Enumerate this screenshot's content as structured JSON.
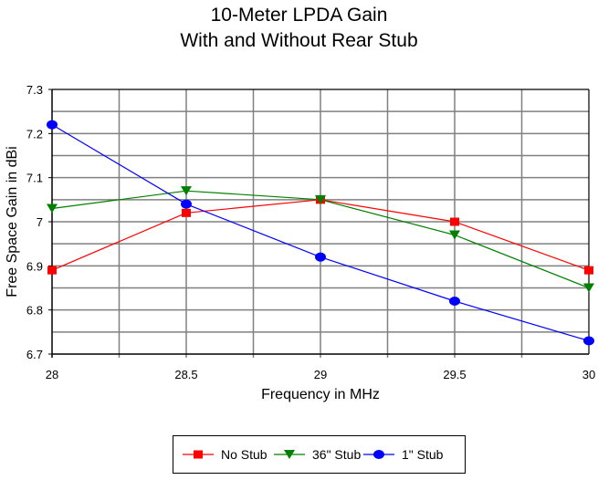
{
  "chart_data": {
    "type": "line",
    "title": "10-Meter LPDA Gain",
    "subtitle": "With and Without Rear Stub",
    "xlabel": "Frequency in MHz",
    "ylabel": "Free Space Gain in dBi",
    "x": [
      28,
      28.5,
      29,
      29.5,
      30
    ],
    "xlim": [
      28,
      30
    ],
    "ylim": [
      6.7,
      7.3
    ],
    "xticks": [
      "28",
      "28.5",
      "29",
      "29.5",
      "30"
    ],
    "yticks": [
      "6.7",
      "6.8",
      "6.9",
      "7",
      "7.1",
      "7.2",
      "7.3"
    ],
    "grid": true,
    "legend_position": "bottom",
    "series": [
      {
        "name": "No Stub",
        "color": "#ff0000",
        "marker": "square",
        "values": [
          6.89,
          7.02,
          7.05,
          7.0,
          6.89
        ]
      },
      {
        "name": "36\" Stub",
        "color": "#008000",
        "marker": "triangle-down",
        "values": [
          7.03,
          7.07,
          7.05,
          6.97,
          6.85
        ]
      },
      {
        "name": "1\" Stub",
        "color": "#0000ff",
        "marker": "circle",
        "values": [
          7.22,
          7.04,
          6.92,
          6.82,
          6.73
        ]
      }
    ]
  }
}
